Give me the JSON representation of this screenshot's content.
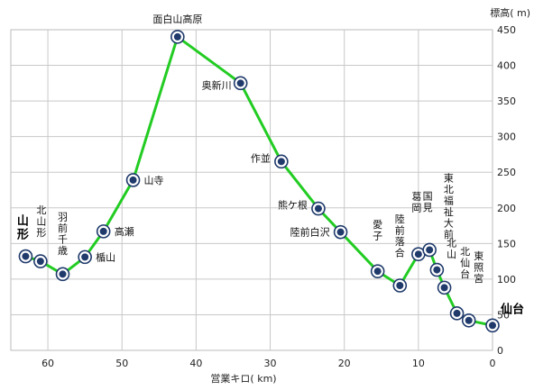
{
  "chart_data": {
    "type": "line",
    "xlabel": "営業キロ( km)",
    "ylabel": "標高( m)",
    "xlim": [
      65,
      0
    ],
    "ylim": [
      0,
      450
    ],
    "x_reversed": true,
    "grid": true,
    "line_color": "#22cc22",
    "marker_color": "#1f3a6b",
    "x_ticks": [
      60,
      50,
      40,
      30,
      20,
      10,
      0
    ],
    "y_ticks": [
      0,
      50,
      100,
      150,
      200,
      250,
      300,
      350,
      400,
      450
    ],
    "points": [
      {
        "name": "山形",
        "x": 63.0,
        "y": 132,
        "bold": true
      },
      {
        "name": "北山形",
        "x": 61.0,
        "y": 125
      },
      {
        "name": "羽前千歳",
        "x": 58.0,
        "y": 107
      },
      {
        "name": "楯山",
        "x": 55.0,
        "y": 131
      },
      {
        "name": "高瀬",
        "x": 52.5,
        "y": 167
      },
      {
        "name": "山寺",
        "x": 48.5,
        "y": 239
      },
      {
        "name": "面白山高原",
        "x": 42.5,
        "y": 440
      },
      {
        "name": "奥新川",
        "x": 34.0,
        "y": 375
      },
      {
        "name": "作並",
        "x": 28.5,
        "y": 265
      },
      {
        "name": "熊ケ根",
        "x": 23.5,
        "y": 199
      },
      {
        "name": "陸前白沢",
        "x": 20.5,
        "y": 166
      },
      {
        "name": "愛子",
        "x": 15.5,
        "y": 111
      },
      {
        "name": "陸前落合",
        "x": 12.5,
        "y": 91
      },
      {
        "name": "葛岡",
        "x": 10.0,
        "y": 135
      },
      {
        "name": "国見",
        "x": 8.5,
        "y": 141
      },
      {
        "name": "東北福祉大前",
        "x": 7.5,
        "y": 113
      },
      {
        "name": "北山",
        "x": 6.5,
        "y": 88
      },
      {
        "name": "北仙台",
        "x": 4.8,
        "y": 52
      },
      {
        "name": "東照宮",
        "x": 3.2,
        "y": 42
      },
      {
        "name": "仙台",
        "x": 0.0,
        "y": 35,
        "bold": true
      }
    ]
  }
}
